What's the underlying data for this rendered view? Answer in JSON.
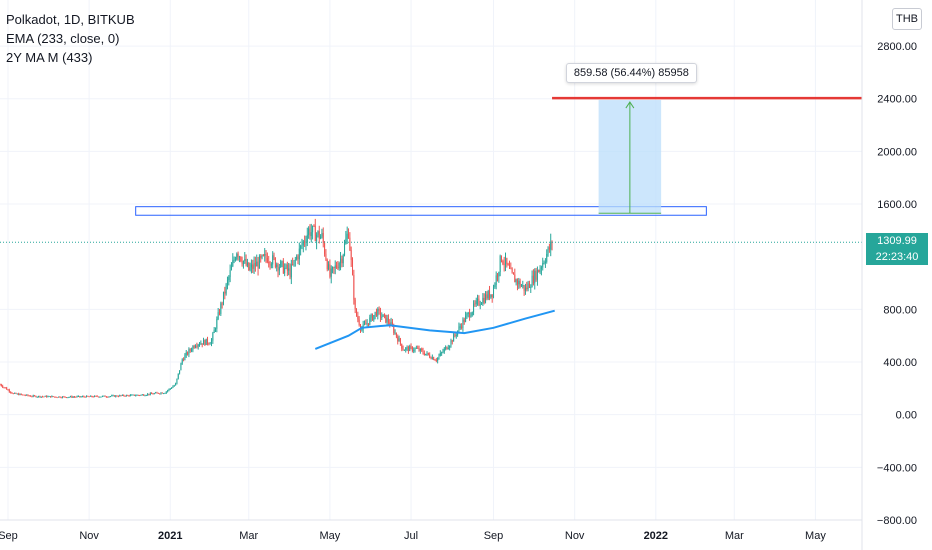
{
  "header": {
    "title": "Polkadot, 1D, BITKUB",
    "indicators": [
      "EMA (233, close, 0)",
      "2Y MA M (433)"
    ],
    "currency": "THB"
  },
  "current_price": {
    "value": "1309.99",
    "countdown": "22:23:40"
  },
  "measure": {
    "label": "859.58 (56.44%) 85958"
  },
  "colors": {
    "up": "#26a69a",
    "down": "#ef5350",
    "ema": "#2196f3",
    "resistance": "#e53935",
    "box": "#2962ff",
    "measure_fill": "#bbdefb",
    "measure_arrow": "#4caf50"
  },
  "chart_data": {
    "type": "candlestick",
    "title": "Polkadot, 1D, BITKUB",
    "y_ticks": [
      "2800.00",
      "2400.00",
      "2000.00",
      "1600.00",
      "800.00",
      "400.00",
      "0.00",
      "−400.00",
      "−800.00"
    ],
    "ylim": [
      -800,
      3150
    ],
    "x_ticks": [
      {
        "label": "Sep",
        "date": "2020-09-01"
      },
      {
        "label": "Nov",
        "date": "2020-11-01"
      },
      {
        "label": "2021",
        "date": "2021-01-01",
        "bold": true
      },
      {
        "label": "Mar",
        "date": "2021-03-01"
      },
      {
        "label": "May",
        "date": "2021-05-01"
      },
      {
        "label": "Jul",
        "date": "2021-07-01"
      },
      {
        "label": "Sep",
        "date": "2021-09-01"
      },
      {
        "label": "Nov",
        "date": "2021-11-01"
      },
      {
        "label": "2022",
        "date": "2022-01-01",
        "bold": true
      },
      {
        "label": "Mar",
        "date": "2022-03-01"
      },
      {
        "label": "May",
        "date": "2022-05-01"
      }
    ],
    "xlim": [
      "2020-08-26",
      "2022-06-05"
    ],
    "grid": true,
    "price_path": [
      [
        "2020-08-26",
        230
      ],
      [
        "2020-09-05",
        160
      ],
      [
        "2020-09-20",
        140
      ],
      [
        "2020-10-15",
        135
      ],
      [
        "2020-11-15",
        140
      ],
      [
        "2020-12-10",
        150
      ],
      [
        "2020-12-28",
        170
      ],
      [
        "2021-01-05",
        230
      ],
      [
        "2021-01-10",
        420
      ],
      [
        "2021-01-20",
        540
      ],
      [
        "2021-02-01",
        560
      ],
      [
        "2021-02-10",
        900
      ],
      [
        "2021-02-20",
        1250
      ],
      [
        "2021-03-01",
        1100
      ],
      [
        "2021-03-15",
        1200
      ],
      [
        "2021-04-01",
        1080
      ],
      [
        "2021-04-15",
        1400
      ],
      [
        "2021-04-25",
        1350
      ],
      [
        "2021-05-01",
        1050
      ],
      [
        "2021-05-10",
        1200
      ],
      [
        "2021-05-15",
        1400
      ],
      [
        "2021-05-20",
        780
      ],
      [
        "2021-05-25",
        650
      ],
      [
        "2021-06-05",
        780
      ],
      [
        "2021-06-15",
        700
      ],
      [
        "2021-06-25",
        500
      ],
      [
        "2021-07-05",
        500
      ],
      [
        "2021-07-20",
        420
      ],
      [
        "2021-07-30",
        540
      ],
      [
        "2021-08-10",
        720
      ],
      [
        "2021-08-20",
        850
      ],
      [
        "2021-08-31",
        930
      ],
      [
        "2021-09-07",
        1200
      ],
      [
        "2021-09-15",
        1050
      ],
      [
        "2021-09-25",
        950
      ],
      [
        "2021-10-05",
        1100
      ],
      [
        "2021-10-15",
        1300
      ]
    ],
    "ema_line": [
      [
        "2021-04-20",
        500
      ],
      [
        "2021-05-15",
        600
      ],
      [
        "2021-05-25",
        660
      ],
      [
        "2021-06-15",
        680
      ],
      [
        "2021-07-15",
        640
      ],
      [
        "2021-08-10",
        620
      ],
      [
        "2021-09-01",
        660
      ],
      [
        "2021-09-25",
        730
      ],
      [
        "2021-10-17",
        790
      ]
    ],
    "resistance_line": {
      "price": 2405,
      "from": "2021-10-15",
      "to": "2022-06-05"
    },
    "zone_box": {
      "from": "2020-12-06",
      "to": "2022-02-08",
      "top": 1580,
      "bottom": 1515
    },
    "measure_box": {
      "from": "2021-11-19",
      "to": "2022-01-05",
      "bottom": 1530,
      "top": 2390
    },
    "last_price": 1309.99
  }
}
